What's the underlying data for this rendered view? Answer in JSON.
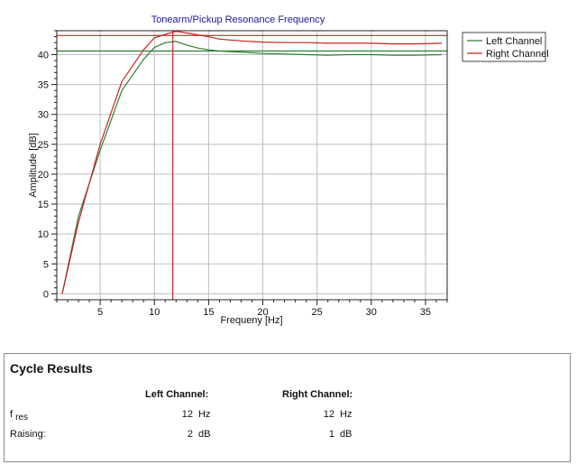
{
  "chart_data": {
    "type": "line",
    "title": "Tonearm/Pickup Resonance Frequency",
    "xlabel": "Frequeny [Hz]",
    "ylabel": "Amplitude [dB]",
    "xlim": [
      1,
      37
    ],
    "ylim": [
      -1,
      44
    ],
    "x_ticks": [
      5,
      10,
      15,
      20,
      25,
      30,
      35
    ],
    "y_ticks": [
      0,
      5,
      10,
      15,
      20,
      25,
      30,
      35,
      40
    ],
    "grid": true,
    "legend_position": "top-right",
    "series": [
      {
        "name": "Left Channel",
        "color": "#2e7d32",
        "x": [
          1.5,
          3,
          5,
          7,
          9,
          10,
          11,
          12,
          13,
          14,
          15,
          16,
          18,
          20,
          22,
          24,
          26,
          28,
          30,
          32,
          34,
          36.5
        ],
        "y": [
          0,
          13,
          24,
          34,
          39.2,
          41.2,
          42,
          42.2,
          41.6,
          41.1,
          40.8,
          40.6,
          40.4,
          40.2,
          40.1,
          40,
          39.9,
          40,
          40,
          39.9,
          39.9,
          40
        ]
      },
      {
        "name": "Right Channel",
        "color": "#cc2222",
        "x": [
          1.5,
          3,
          5,
          7,
          9,
          10,
          11,
          12,
          13,
          14,
          15,
          16,
          18,
          20,
          22,
          24,
          26,
          28,
          30,
          32,
          34,
          36.5
        ],
        "y": [
          0,
          12,
          25,
          35.5,
          40.8,
          42.8,
          43.4,
          43.9,
          43.6,
          43.3,
          43,
          42.6,
          42.3,
          42.1,
          42,
          42,
          41.9,
          41.9,
          41.9,
          41.8,
          41.8,
          41.9
        ]
      }
    ],
    "reference_lines": [
      {
        "orientation": "horizontal",
        "value": 43.2,
        "color": "#cc2222"
      },
      {
        "orientation": "horizontal",
        "value": 40.6,
        "color": "#2e7d32"
      },
      {
        "orientation": "vertical",
        "value": 11.7,
        "color": "#cc2222"
      }
    ]
  },
  "results": {
    "title": "Cycle Results",
    "col_left": "Left Channel:",
    "col_right": "Right Channel:",
    "rows": [
      {
        "label": "f",
        "label_sub": "res",
        "left_value": "12",
        "left_unit": "Hz",
        "right_value": "12",
        "right_unit": "Hz"
      },
      {
        "label": "Raising:",
        "label_sub": "",
        "left_value": "2",
        "left_unit": "dB",
        "right_value": "1",
        "right_unit": "dB"
      }
    ]
  }
}
